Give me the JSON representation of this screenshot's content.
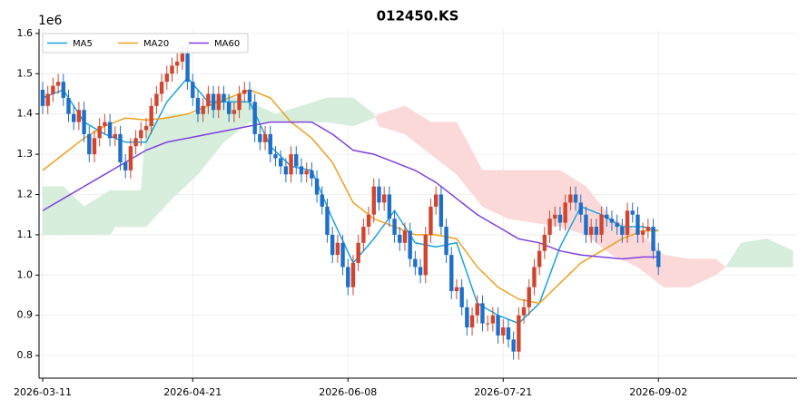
{
  "chart_data": {
    "type": "candlestick",
    "title": "012450.KS",
    "offset_label": "1e6",
    "xlim": [
      -0.7,
      145.8
    ],
    "ylim": [
      0.744,
      1.611
    ],
    "xticks": [
      {
        "value": 0,
        "label": "2026-03-11"
      },
      {
        "value": 29,
        "label": "2026-04-21"
      },
      {
        "value": 59,
        "label": "2026-06-08"
      },
      {
        "value": 89,
        "label": "2026-07-21"
      },
      {
        "value": 119,
        "label": "2026-09-02"
      }
    ],
    "yticks": [
      0.8,
      0.9,
      {
        "value": 1,
        "label": "1.0"
      },
      1.1,
      1.2,
      1.3,
      1.4,
      1.5,
      1.6
    ],
    "grid": true,
    "legend": "upper left",
    "up_color": "#d1452f",
    "down_color": "#1f6fc9",
    "open": [
      1.46,
      1.42,
      1.45,
      1.47,
      1.48,
      1.44,
      1.4,
      1.38,
      1.41,
      1.35,
      1.3,
      1.34,
      1.37,
      1.38,
      1.34,
      1.35,
      1.28,
      1.26,
      1.32,
      1.34,
      1.36,
      1.37,
      1.42,
      1.45,
      1.48,
      1.5,
      1.52,
      1.53,
      1.55,
      1.48,
      1.44,
      1.4,
      1.42,
      1.45,
      1.41,
      1.45,
      1.43,
      1.4,
      1.41,
      1.45,
      1.46,
      1.43,
      1.35,
      1.33,
      1.35,
      1.3,
      1.29,
      1.27,
      1.25,
      1.3,
      1.27,
      1.25,
      1.26,
      1.24,
      1.2,
      1.17,
      1.1,
      1.05,
      1.08,
      1.02,
      0.97,
      1.03,
      1.08,
      1.12,
      1.15,
      1.22,
      1.18,
      1.2,
      1.14,
      1.1,
      1.08,
      1.11,
      1.04,
      1.02,
      1.0,
      1.1,
      1.17,
      1.2,
      1.12,
      1.05,
      0.96,
      0.97,
      0.92,
      0.87,
      0.9,
      0.93,
      0.88,
      0.88,
      0.9,
      0.85,
      0.87,
      0.84,
      0.81,
      0.9,
      0.92,
      0.97,
      1.02,
      1.06,
      1.1,
      1.14,
      1.15,
      1.13,
      1.18,
      1.2,
      1.18,
      1.15,
      1.1,
      1.12,
      1.1,
      1.15,
      1.14,
      1.13,
      1.12,
      1.1,
      1.16,
      1.15,
      1.1,
      1.11,
      1.12,
      1.06
    ],
    "high": [
      1.48,
      1.47,
      1.49,
      1.5,
      1.5,
      1.46,
      1.42,
      1.43,
      1.43,
      1.37,
      1.36,
      1.39,
      1.4,
      1.4,
      1.37,
      1.37,
      1.3,
      1.34,
      1.36,
      1.38,
      1.39,
      1.44,
      1.47,
      1.5,
      1.52,
      1.54,
      1.55,
      1.57,
      1.57,
      1.5,
      1.46,
      1.44,
      1.47,
      1.47,
      1.47,
      1.47,
      1.45,
      1.43,
      1.47,
      1.48,
      1.48,
      1.45,
      1.37,
      1.37,
      1.37,
      1.32,
      1.31,
      1.29,
      1.32,
      1.32,
      1.29,
      1.28,
      1.28,
      1.26,
      1.22,
      1.19,
      1.12,
      1.1,
      1.1,
      1.04,
      1.05,
      1.1,
      1.14,
      1.17,
      1.24,
      1.24,
      1.22,
      1.22,
      1.16,
      1.12,
      1.13,
      1.13,
      1.06,
      1.04,
      1.12,
      1.19,
      1.22,
      1.22,
      1.14,
      1.07,
      0.99,
      0.99,
      0.94,
      0.92,
      0.95,
      0.95,
      0.9,
      0.92,
      0.92,
      0.89,
      0.89,
      0.86,
      0.92,
      0.94,
      0.99,
      1.04,
      1.08,
      1.12,
      1.16,
      1.17,
      1.17,
      1.2,
      1.22,
      1.22,
      1.2,
      1.17,
      1.14,
      1.14,
      1.17,
      1.17,
      1.16,
      1.15,
      1.14,
      1.18,
      1.18,
      1.17,
      1.13,
      1.14,
      1.14,
      1.08
    ],
    "low": [
      1.4,
      1.4,
      1.43,
      1.45,
      1.42,
      1.38,
      1.36,
      1.36,
      1.33,
      1.28,
      1.28,
      1.32,
      1.35,
      1.32,
      1.32,
      1.26,
      1.24,
      1.24,
      1.3,
      1.32,
      1.34,
      1.35,
      1.4,
      1.43,
      1.46,
      1.48,
      1.5,
      1.51,
      1.46,
      1.42,
      1.38,
      1.38,
      1.4,
      1.39,
      1.39,
      1.41,
      1.38,
      1.38,
      1.39,
      1.43,
      1.41,
      1.33,
      1.31,
      1.31,
      1.28,
      1.27,
      1.25,
      1.23,
      1.23,
      1.25,
      1.23,
      1.23,
      1.22,
      1.18,
      1.15,
      1.08,
      1.03,
      1.03,
      1.0,
      0.95,
      0.95,
      1.01,
      1.06,
      1.1,
      1.13,
      1.16,
      1.16,
      1.12,
      1.08,
      1.06,
      1.06,
      1.02,
      1.0,
      0.98,
      0.98,
      1.08,
      1.15,
      1.1,
      1.03,
      0.94,
      0.94,
      0.9,
      0.85,
      0.85,
      0.88,
      0.86,
      0.86,
      0.86,
      0.83,
      0.83,
      0.82,
      0.79,
      0.79,
      0.88,
      0.9,
      0.95,
      1.0,
      1.04,
      1.08,
      1.12,
      1.11,
      1.11,
      1.16,
      1.16,
      1.13,
      1.08,
      1.08,
      1.08,
      1.08,
      1.12,
      1.11,
      1.1,
      1.08,
      1.08,
      1.13,
      1.08,
      1.08,
      1.09,
      1.04,
      1.0
    ],
    "close": [
      1.42,
      1.45,
      1.47,
      1.48,
      1.44,
      1.4,
      1.38,
      1.41,
      1.35,
      1.3,
      1.34,
      1.37,
      1.38,
      1.34,
      1.35,
      1.28,
      1.26,
      1.32,
      1.34,
      1.36,
      1.37,
      1.42,
      1.45,
      1.48,
      1.5,
      1.52,
      1.53,
      1.55,
      1.48,
      1.44,
      1.4,
      1.42,
      1.45,
      1.41,
      1.45,
      1.43,
      1.4,
      1.41,
      1.45,
      1.46,
      1.43,
      1.35,
      1.33,
      1.35,
      1.3,
      1.29,
      1.27,
      1.25,
      1.3,
      1.27,
      1.25,
      1.26,
      1.24,
      1.2,
      1.17,
      1.1,
      1.05,
      1.08,
      1.02,
      0.97,
      1.03,
      1.08,
      1.12,
      1.15,
      1.22,
      1.18,
      1.2,
      1.14,
      1.1,
      1.08,
      1.11,
      1.04,
      1.02,
      1.0,
      1.1,
      1.17,
      1.2,
      1.12,
      1.05,
      0.96,
      0.97,
      0.92,
      0.87,
      0.9,
      0.93,
      0.88,
      0.88,
      0.9,
      0.85,
      0.87,
      0.84,
      0.81,
      0.9,
      0.92,
      0.97,
      1.02,
      1.06,
      1.1,
      1.14,
      1.15,
      1.13,
      1.18,
      1.2,
      1.18,
      1.15,
      1.1,
      1.12,
      1.1,
      1.15,
      1.14,
      1.13,
      1.12,
      1.1,
      1.16,
      1.15,
      1.1,
      1.11,
      1.12,
      1.06,
      1.02
    ],
    "series": [
      {
        "name": "MA5",
        "color": "#1ca3de",
        "x": [
          0,
          4,
          8,
          12,
          16,
          20,
          24,
          28,
          32,
          36,
          40,
          44,
          48,
          52,
          56,
          60,
          64,
          68,
          72,
          76,
          80,
          84,
          88,
          92,
          96,
          100,
          104,
          108,
          112,
          116,
          119
        ],
        "values": [
          1.44,
          1.46,
          1.38,
          1.35,
          1.33,
          1.33,
          1.43,
          1.49,
          1.43,
          1.43,
          1.43,
          1.32,
          1.27,
          1.26,
          1.14,
          1.03,
          1.09,
          1.16,
          1.08,
          1.07,
          1.08,
          0.93,
          0.9,
          0.88,
          0.93,
          1.07,
          1.17,
          1.15,
          1.12,
          1.12,
          1.11
        ]
      },
      {
        "name": "MA20",
        "color": "#f0a01e",
        "x": [
          0,
          4,
          8,
          12,
          16,
          20,
          24,
          28,
          32,
          36,
          40,
          44,
          48,
          52,
          56,
          60,
          64,
          68,
          72,
          76,
          80,
          84,
          88,
          92,
          96,
          100,
          104,
          108,
          112,
          116,
          119
        ],
        "values": [
          1.26,
          1.3,
          1.34,
          1.37,
          1.39,
          1.385,
          1.39,
          1.4,
          1.42,
          1.44,
          1.46,
          1.44,
          1.38,
          1.34,
          1.28,
          1.18,
          1.14,
          1.12,
          1.1,
          1.1,
          1.09,
          1.02,
          0.97,
          0.94,
          0.93,
          0.98,
          1.03,
          1.06,
          1.09,
          1.11,
          1.11
        ]
      },
      {
        "name": "MA60",
        "color": "#8040e0",
        "x": [
          0,
          4,
          8,
          12,
          16,
          20,
          24,
          28,
          32,
          36,
          40,
          44,
          48,
          52,
          56,
          60,
          64,
          68,
          72,
          76,
          80,
          84,
          88,
          92,
          96,
          100,
          104,
          108,
          112,
          116,
          119
        ],
        "values": [
          1.16,
          1.19,
          1.22,
          1.25,
          1.28,
          1.31,
          1.33,
          1.34,
          1.35,
          1.36,
          1.37,
          1.38,
          1.38,
          1.38,
          1.35,
          1.31,
          1.3,
          1.28,
          1.26,
          1.23,
          1.19,
          1.15,
          1.12,
          1.09,
          1.08,
          1.06,
          1.05,
          1.045,
          1.04,
          1.045,
          1.045
        ]
      }
    ],
    "cloud": {
      "up_color": "#d6eedb",
      "down_color": "#fcd9d9",
      "x": [
        0,
        4,
        8,
        13,
        14,
        19,
        20,
        25,
        30,
        35,
        40,
        45,
        50,
        55,
        60,
        64,
        65,
        70,
        75,
        80,
        85,
        90,
        95,
        100,
        105,
        110,
        115,
        120,
        125,
        130,
        132,
        135,
        140,
        145
      ],
      "span_a": [
        1.22,
        1.22,
        1.17,
        1.21,
        1.21,
        1.21,
        1.37,
        1.4,
        1.4,
        1.45,
        1.43,
        1.4,
        1.42,
        1.44,
        1.44,
        1.4,
        1.37,
        1.35,
        1.3,
        1.25,
        1.17,
        1.14,
        1.13,
        1.12,
        1.1,
        1.05,
        1.02,
        0.97,
        0.97,
        1.0,
        1.02,
        1.08,
        1.09,
        1.06
      ],
      "span_b": [
        1.1,
        1.1,
        1.1,
        1.1,
        1.12,
        1.12,
        1.12,
        1.19,
        1.25,
        1.33,
        1.38,
        1.38,
        1.38,
        1.38,
        1.37,
        1.39,
        1.4,
        1.42,
        1.38,
        1.38,
        1.26,
        1.26,
        1.26,
        1.26,
        1.22,
        1.14,
        1.11,
        1.05,
        1.04,
        1.04,
        1.02,
        1.02,
        1.02,
        1.02
      ]
    }
  }
}
